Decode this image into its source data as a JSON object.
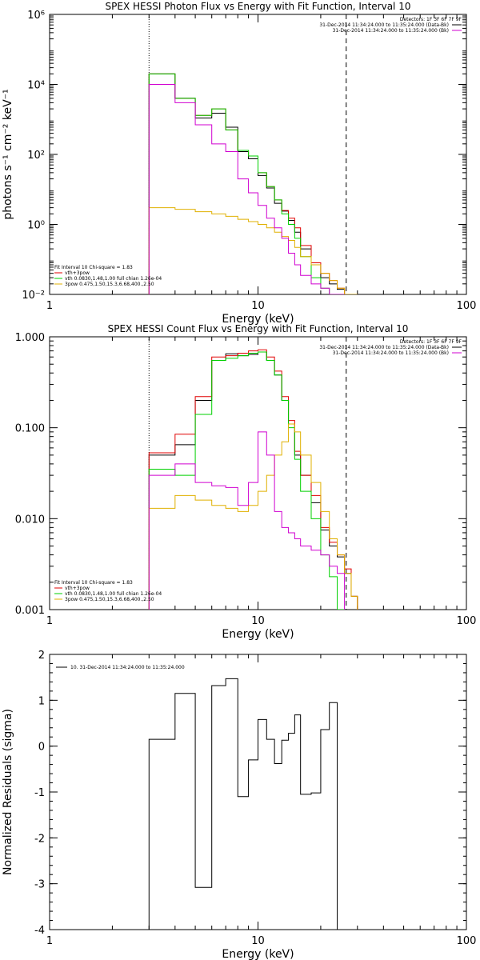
{
  "chart_data": [
    {
      "type": "line",
      "title": "SPEX HESSI Photon Flux vs Energy with Fit Function, Interval 10",
      "xlabel": "Energy (keV)",
      "ylabel": "photons s⁻¹ cm⁻² keV⁻¹",
      "xlim": [
        1,
        100
      ],
      "ylim": [
        0.01,
        1000000
      ],
      "xscale": "log",
      "yscale": "log",
      "xticks": [
        "1",
        "10",
        "100"
      ],
      "yticks": [
        {
          "v": 0.01,
          "label": "10⁻²"
        },
        {
          "v": 1,
          "label": "10⁰"
        },
        {
          "v": 100,
          "label": "10²"
        },
        {
          "v": 10000,
          "label": "10⁴"
        },
        {
          "v": 1000000,
          "label": "10⁶"
        }
      ],
      "detectors": "Detectors: 1F 3F 6F 7F 9F",
      "legend_top": [
        {
          "text": "31-Dec-2014 11:34:24.000 to 11:35:24.000 (Data-Bk)",
          "color": "#000000"
        },
        {
          "text": "31-Dec-2014 11:34:24.000 to 11:35:24.000 (Bk)",
          "color": "#d000d0"
        }
      ],
      "legend_bottom": [
        {
          "text": "Fit Interval 10   Chi-square = 1.83",
          "color": ""
        },
        {
          "text": "vth+3pow",
          "color": "#e00000"
        },
        {
          "text": "vth 0.0830,1.48,1.00  full chian 1.26e-04",
          "color": "#00d000"
        },
        {
          "text": "3pow 0.475,1.50,15.3,6.68,400.,2.50",
          "color": "#e0b000"
        }
      ],
      "edges": [
        3,
        4,
        5,
        6,
        7,
        8,
        9,
        10,
        11,
        12,
        13,
        14,
        15,
        16,
        18,
        20,
        22,
        24,
        26,
        28,
        30
      ],
      "dotted_x": 3,
      "dashed_x": 26.5,
      "series": [
        {
          "name": "Data-Bk",
          "color": "#000000",
          "values": [
            20000,
            4000,
            1100,
            1500,
            600,
            120,
            75,
            25,
            11,
            4,
            2.4,
            1.3,
            0.6,
            0.2,
            0.07,
            0.03,
            0.02,
            0.014,
            0.01,
            0.005
          ]
        },
        {
          "name": "vth+3pow",
          "color": "#e00000",
          "values": [
            20000,
            4000,
            1300,
            2000,
            500,
            130,
            90,
            30,
            12,
            5,
            2.5,
            1.5,
            0.8,
            0.25,
            0.08,
            0.04,
            0.025,
            0.015,
            0.01,
            0.005
          ]
        },
        {
          "name": "vth",
          "color": "#00d000",
          "values": [
            20000,
            4000,
            1300,
            2000,
            500,
            130,
            90,
            30,
            12,
            5,
            2,
            1,
            0.4,
            0.12,
            0.03,
            0.015,
            0.007,
            0.003
          ]
        },
        {
          "name": "3pow",
          "color": "#e0b000",
          "values": [
            3,
            2.7,
            2.3,
            2,
            1.7,
            1.4,
            1.2,
            1,
            0.8,
            0.6,
            0.45,
            0.35,
            0.22,
            0.12,
            0.07,
            0.04,
            0.025,
            0.015,
            0.01,
            0.006
          ]
        },
        {
          "name": "Bk",
          "color": "#d000d0",
          "values": [
            10000,
            3000,
            700,
            200,
            120,
            20,
            8,
            3.5,
            1.5,
            0.8,
            0.4,
            0.15,
            0.07,
            0.035,
            0.02,
            0.015,
            0.01,
            0.008
          ]
        }
      ]
    },
    {
      "type": "line",
      "title": "SPEX HESSI Count Flux vs Energy with Fit Function, Interval 10",
      "xlabel": "Energy (keV)",
      "ylabel": "",
      "xlim": [
        1,
        100
      ],
      "ylim": [
        0.001,
        1
      ],
      "xscale": "log",
      "yscale": "log",
      "xticks": [
        "1",
        "10",
        "100"
      ],
      "yticks": [
        {
          "v": 0.001,
          "label": "0.001"
        },
        {
          "v": 0.01,
          "label": "0.010"
        },
        {
          "v": 0.1,
          "label": "0.100"
        },
        {
          "v": 1,
          "label": "1.000"
        }
      ],
      "detectors": "Detectors: 1F 3F 6F 7F 9F",
      "legend_top": [
        {
          "text": "31-Dec-2014 11:34:24.000 to 11:35:24.000 (Data-Bk)",
          "color": "#000000"
        },
        {
          "text": "31-Dec-2014 11:34:24.000 to 11:35:24.000 (Bk)",
          "color": "#d000d0"
        }
      ],
      "legend_bottom": [
        {
          "text": "Fit Interval 10   Chi-square = 1.83",
          "color": ""
        },
        {
          "text": "vth+3pow",
          "color": "#e00000"
        },
        {
          "text": "vth 0.0830,1.48,1.00  full chian 1.26e-04",
          "color": "#00d000"
        },
        {
          "text": "3pow 0.475,1.50,15.3,6.68,400.,2.50",
          "color": "#e0b000"
        }
      ],
      "edges": [
        3,
        4,
        5,
        6,
        7,
        8,
        9,
        10,
        11,
        12,
        13,
        14,
        15,
        16,
        18,
        20,
        22,
        24,
        26,
        28,
        30
      ],
      "dotted_x": 3,
      "dashed_x": 26.5,
      "series": [
        {
          "name": "Data-Bk",
          "color": "#000000",
          "values": [
            0.05,
            0.065,
            0.2,
            0.55,
            0.65,
            0.62,
            0.64,
            0.68,
            0.55,
            0.38,
            0.2,
            0.11,
            0.05,
            0.03,
            0.015,
            0.0075,
            0.005,
            0.0038,
            0.0025,
            0.0014
          ]
        },
        {
          "name": "vth+3pow",
          "color": "#e00000",
          "values": [
            0.053,
            0.085,
            0.22,
            0.6,
            0.62,
            0.66,
            0.7,
            0.72,
            0.6,
            0.42,
            0.22,
            0.12,
            0.055,
            0.03,
            0.018,
            0.008,
            0.0055,
            0.004,
            0.0028,
            0.0014
          ]
        },
        {
          "name": "vth",
          "color": "#00d000",
          "values": [
            0.035,
            0.03,
            0.14,
            0.55,
            0.58,
            0.62,
            0.66,
            0.68,
            0.55,
            0.38,
            0.2,
            0.1,
            0.045,
            0.02,
            0.01,
            0.004,
            0.0023,
            0.001
          ]
        },
        {
          "name": "3pow",
          "color": "#e0b000",
          "values": [
            0.013,
            0.018,
            0.016,
            0.014,
            0.013,
            0.012,
            0.014,
            0.02,
            0.03,
            0.05,
            0.07,
            0.11,
            0.09,
            0.05,
            0.025,
            0.012,
            0.006,
            0.004,
            0.0025,
            0.0014
          ]
        },
        {
          "name": "Bk",
          "color": "#d000d0",
          "values": [
            0.03,
            0.04,
            0.025,
            0.023,
            0.022,
            0.014,
            0.025,
            0.09,
            0.05,
            0.012,
            0.008,
            0.007,
            0.006,
            0.005,
            0.0045,
            0.004,
            0.003,
            0.0025
          ]
        }
      ]
    },
    {
      "type": "line",
      "title": "",
      "xlabel": "Energy (keV)",
      "ylabel": "Normalized Residuals (sigma)",
      "xlim": [
        1,
        100
      ],
      "ylim": [
        -4,
        2
      ],
      "xscale": "log",
      "yscale": "linear",
      "xticks": [
        "1",
        "10",
        "100"
      ],
      "yticks": [
        {
          "v": -4,
          "label": "-4"
        },
        {
          "v": -3,
          "label": "-3"
        },
        {
          "v": -2,
          "label": "-2"
        },
        {
          "v": -1,
          "label": "-1"
        },
        {
          "v": 0,
          "label": "0"
        },
        {
          "v": 1,
          "label": "1"
        },
        {
          "v": 2,
          "label": "2"
        }
      ],
      "legend_top": [
        {
          "text": "10. 31-Dec-2014 11:34:24.000 to 11:35:24.000",
          "color": "#000000"
        }
      ],
      "edges": [
        3,
        4,
        5,
        6,
        7,
        8,
        9,
        10,
        11,
        12,
        13,
        14,
        15,
        16,
        18,
        20,
        22,
        24,
        26,
        28
      ],
      "series": [
        {
          "name": "10. 31-Dec-2014 11:34:24.000 to 11:35:24.000",
          "color": "#000000",
          "values": [
            0.15,
            1.15,
            -3.08,
            1.32,
            1.47,
            -1.1,
            -0.3,
            0.58,
            0.15,
            -0.38,
            0.13,
            0.28,
            0.68,
            -1.05,
            -1.02,
            0.36,
            0.95,
            -4.2,
            -4.2
          ]
        }
      ]
    }
  ]
}
